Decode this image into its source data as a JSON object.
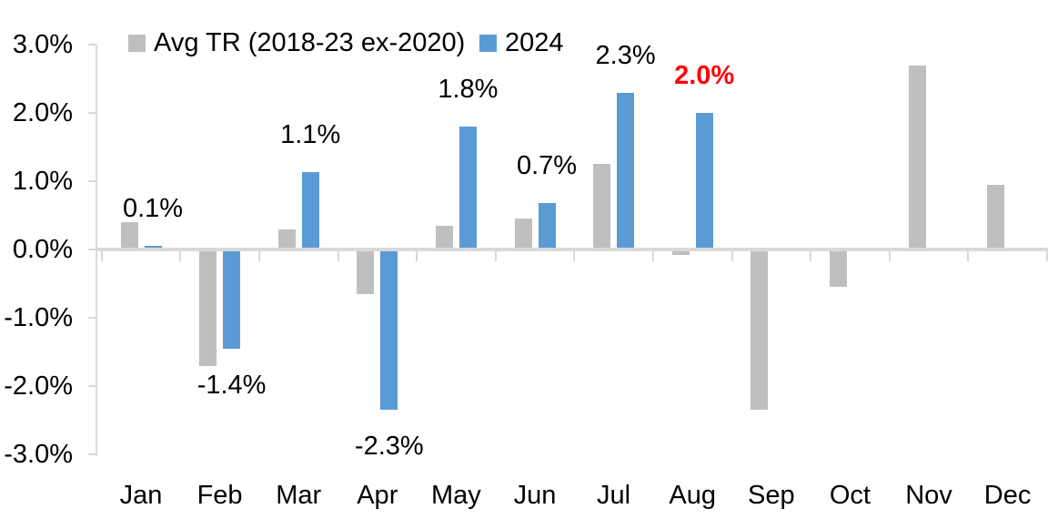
{
  "chart_data": {
    "type": "bar",
    "title": "",
    "categories": [
      "Jan",
      "Feb",
      "Mar",
      "Apr",
      "May",
      "Jun",
      "Jul",
      "Aug",
      "Sep",
      "Oct",
      "Nov",
      "Dec"
    ],
    "y_axis": {
      "unit": "%",
      "min": -3.0,
      "max": 3.0,
      "tick_step": 1.0,
      "tick_labels": [
        "3.0%",
        "2.0%",
        "1.0%",
        "0.0%",
        "-1.0%",
        "-2.0%",
        "-3.0%"
      ],
      "tick_values": [
        3,
        2,
        1,
        0,
        -1,
        -2,
        -3
      ],
      "grid": false
    },
    "legend_position": "top",
    "series": [
      {
        "name": "Avg TR (2018-23 ex-2020)",
        "color": "#BFBFBF",
        "values": [
          0.4,
          -1.7,
          0.3,
          -0.65,
          0.35,
          0.45,
          1.25,
          -0.08,
          -2.35,
          -0.55,
          2.7,
          0.95
        ],
        "point_labels": [
          null,
          null,
          null,
          null,
          null,
          null,
          null,
          null,
          null,
          null,
          null,
          null
        ]
      },
      {
        "name": "2024",
        "color": "#5B9BD5",
        "values": [
          0.05,
          -1.45,
          1.13,
          -2.35,
          1.8,
          0.68,
          2.3,
          2.0,
          null,
          null,
          null,
          null
        ],
        "point_labels": [
          {
            "text": "0.1%",
            "color": "#000000",
            "bold": false
          },
          {
            "text": "-1.4%",
            "color": "#000000",
            "bold": false
          },
          {
            "text": "1.1%",
            "color": "#000000",
            "bold": false
          },
          {
            "text": "-2.3%",
            "color": "#000000",
            "bold": false
          },
          {
            "text": "1.8%",
            "color": "#000000",
            "bold": false
          },
          {
            "text": "0.7%",
            "color": "#000000",
            "bold": false
          },
          {
            "text": "2.3%",
            "color": "#000000",
            "bold": false
          },
          {
            "text": "2.0%",
            "color": "#FF0000",
            "bold": true
          },
          null,
          null,
          null,
          null
        ]
      }
    ]
  },
  "colors": {
    "axis": "#D9D9D9",
    "text": "#000000",
    "highlight": "#FF0000",
    "background": "#FFFFFF"
  }
}
